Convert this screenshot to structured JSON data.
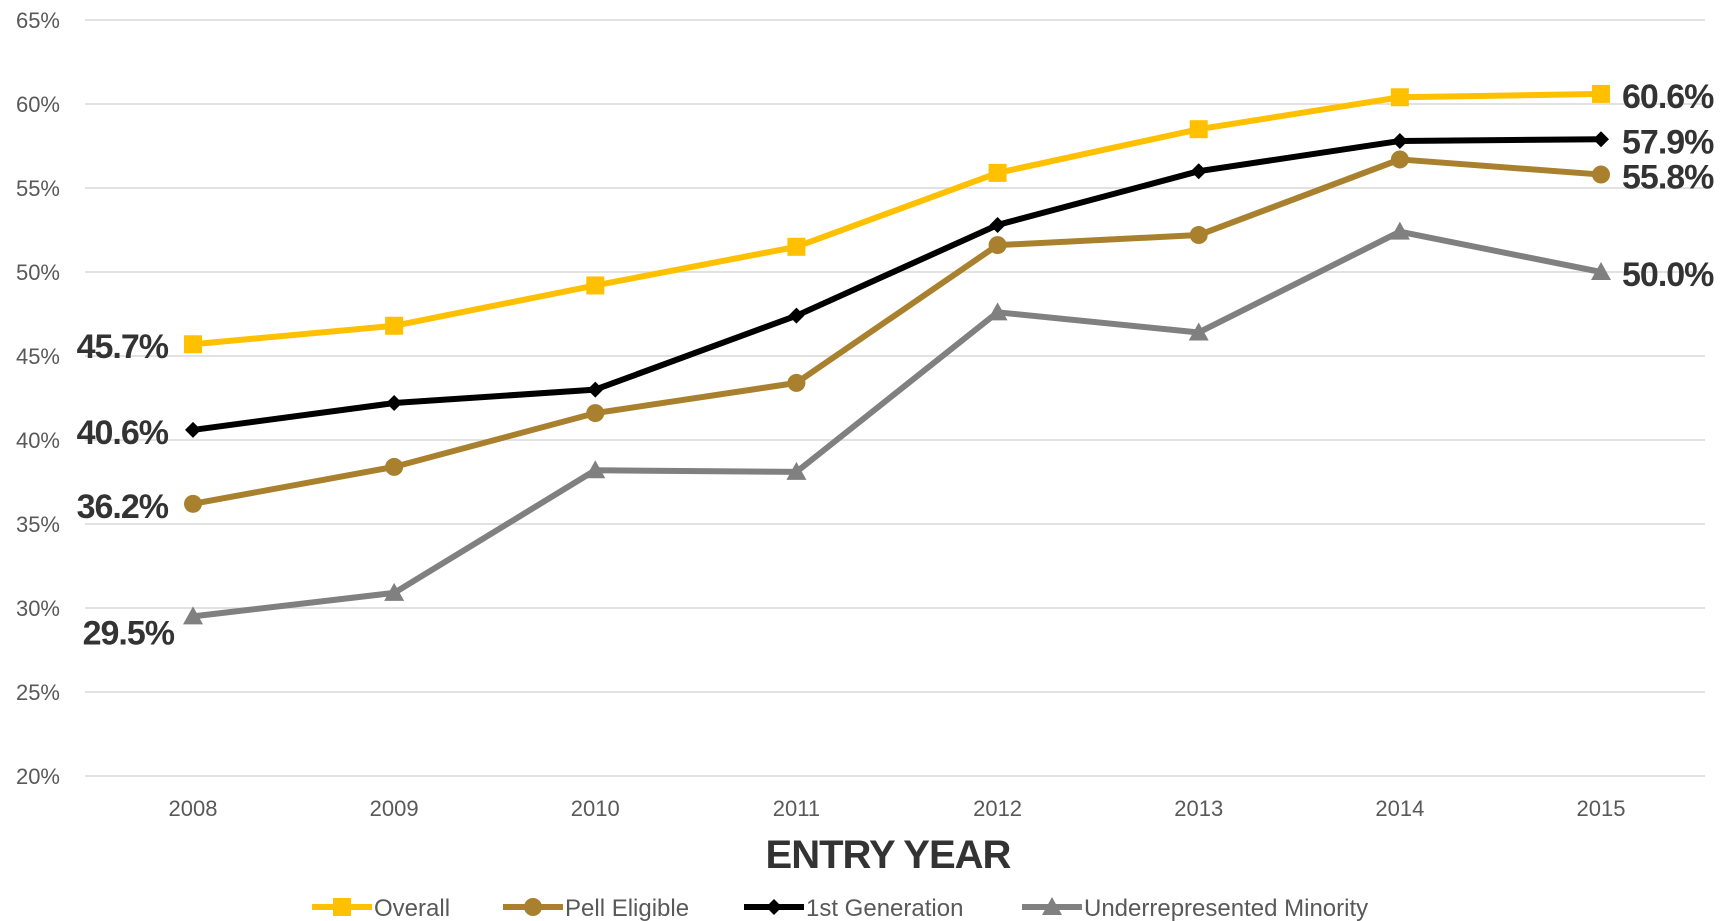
{
  "chart_data": {
    "type": "line",
    "title": "",
    "xlabel": "ENTRY YEAR",
    "ylabel": "",
    "categories": [
      "2008",
      "2009",
      "2010",
      "2011",
      "2012",
      "2013",
      "2014",
      "2015"
    ],
    "ylim": [
      20,
      65
    ],
    "yticks": [
      20,
      25,
      30,
      35,
      40,
      45,
      50,
      55,
      60,
      65
    ],
    "ytick_labels": [
      "20%",
      "25%",
      "30%",
      "35%",
      "40%",
      "45%",
      "50%",
      "55%",
      "60%",
      "65%"
    ],
    "grid": "horizontal",
    "legend_position": "bottom",
    "series": [
      {
        "name": "Overall",
        "color": "#FFC000",
        "marker": "square",
        "values": [
          45.7,
          46.8,
          49.2,
          51.5,
          55.9,
          58.5,
          60.4,
          60.6
        ],
        "start_label": "45.7%",
        "end_label": "60.6%"
      },
      {
        "name": "Pell Eligible",
        "color": "#A9812E",
        "marker": "circle",
        "values": [
          36.2,
          38.4,
          41.6,
          43.4,
          51.6,
          52.2,
          56.7,
          55.8
        ],
        "start_label": "36.2%",
        "end_label": "55.8%"
      },
      {
        "name": "1st Generation",
        "color": "#000000",
        "marker": "diamond",
        "values": [
          40.6,
          42.2,
          43.0,
          47.4,
          52.8,
          56.0,
          57.8,
          57.9
        ],
        "start_label": "40.6%",
        "end_label": "57.9%"
      },
      {
        "name": "Underrepresented Minority",
        "color": "#808080",
        "marker": "triangle",
        "values": [
          29.5,
          30.9,
          38.2,
          38.1,
          47.6,
          46.4,
          52.4,
          50.0
        ],
        "start_label": "29.5%",
        "end_label": "50.0%"
      }
    ]
  }
}
